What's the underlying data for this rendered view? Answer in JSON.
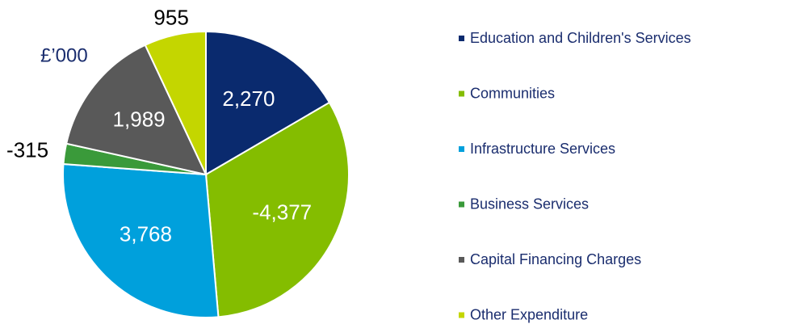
{
  "chart_data": {
    "type": "pie",
    "subtitle": "£’000",
    "categories": [
      "Education and Children's Services",
      "Communities",
      "Infrastructure Services",
      "Business Services",
      "Capital Financing Charges",
      "Other Expenditure"
    ],
    "values": [
      2270,
      -4377,
      3768,
      -315,
      1989,
      955
    ],
    "value_labels": [
      "2,270",
      "-4,377",
      "3,768",
      "-315",
      "1,989",
      "955"
    ],
    "colors": [
      "#0a2a6e",
      "#84bd00",
      "#00a0dc",
      "#3a9a3a",
      "#595959",
      "#c4d600"
    ],
    "legend": "right"
  }
}
